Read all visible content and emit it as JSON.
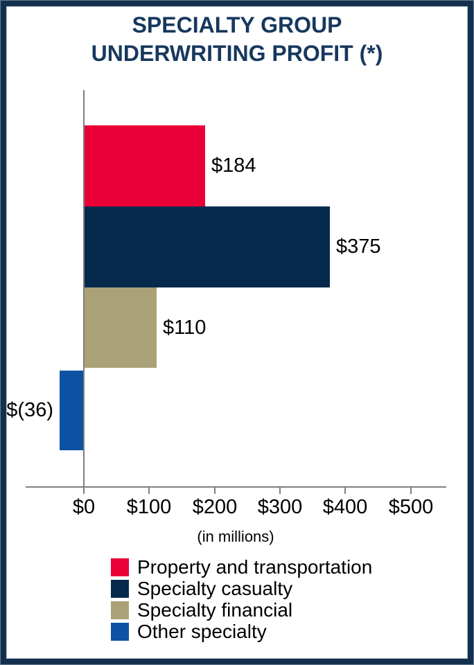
{
  "title": {
    "line1": "SPECIALTY GROUP",
    "line2": "UNDERWRITING PROFIT (*)"
  },
  "chart_data": {
    "type": "bar",
    "orientation": "horizontal",
    "title": "SPECIALTY GROUP UNDERWRITING PROFIT (*)",
    "categories": [
      "Property and transportation",
      "Specialty casualty",
      "Specialty financial",
      "Other specialty"
    ],
    "values": [
      184,
      375,
      110,
      -36
    ],
    "value_labels": [
      "$184",
      "$375",
      "$110",
      "$(36)"
    ],
    "bar_colors": [
      "#E90037",
      "#052A4E",
      "#ABA177",
      "#0D53A3"
    ],
    "xlabel": "(in millions)",
    "x_ticks": [
      0,
      100,
      200,
      300,
      400,
      500
    ],
    "x_tick_labels": [
      "$0",
      "$100",
      "$200",
      "$300",
      "$400",
      "$500"
    ],
    "xlim": [
      -90,
      555
    ],
    "grid": false,
    "legend_position": "bottom"
  },
  "legend": {
    "items": [
      {
        "label": "Property and transportation",
        "color": "#E90037"
      },
      {
        "label": "Specialty casualty",
        "color": "#052A4E"
      },
      {
        "label": "Specialty financial",
        "color": "#ABA177"
      },
      {
        "label": "Other specialty",
        "color": "#0D53A3"
      }
    ]
  },
  "styles": {
    "title_color": "#17385E",
    "axis_color": "#7F7F7F",
    "text_color": "#000000",
    "frame_color": "#13304F",
    "background": "#FFFFFF"
  }
}
